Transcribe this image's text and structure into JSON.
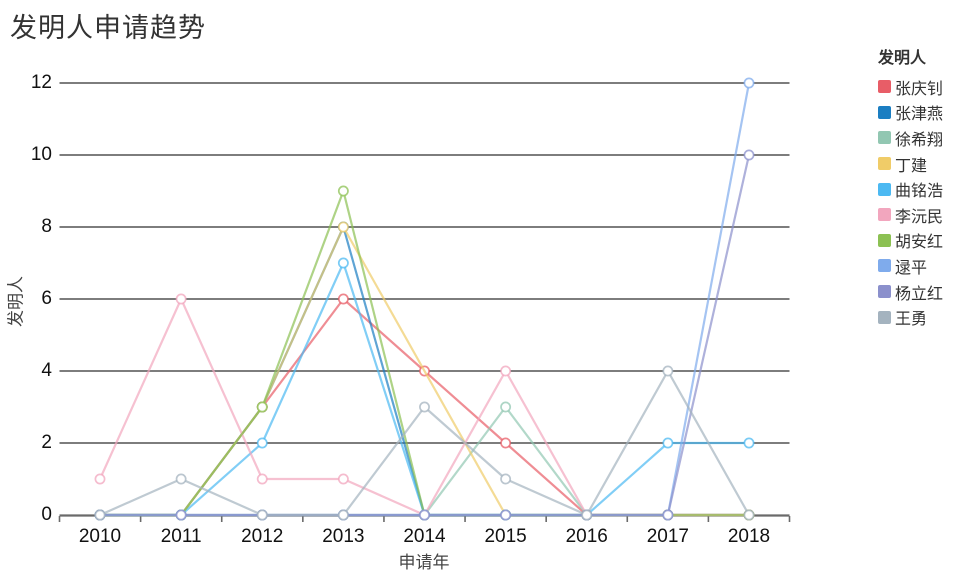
{
  "title": "发明人申请趋势",
  "legend": {
    "title": "发明人"
  },
  "chart_data": {
    "type": "line",
    "title": "发明人申请趋势",
    "xlabel": "申请年",
    "ylabel": "发明人",
    "x": [
      "2010",
      "2011",
      "2012",
      "2013",
      "2014",
      "2015",
      "2016",
      "2017",
      "2018"
    ],
    "yticks": [
      0,
      2,
      4,
      6,
      8,
      10,
      12
    ],
    "ylim": [
      0,
      12
    ],
    "grid": "horizontal-only",
    "legend_position": "right",
    "legend_title": "发明人",
    "marker": "open-circle",
    "series": [
      {
        "name": "张庆钊",
        "color": "#e85d67",
        "values": [
          0,
          0,
          3,
          6,
          4,
          2,
          0,
          0,
          0
        ]
      },
      {
        "name": "张津燕",
        "color": "#1b7ec2",
        "values": [
          0,
          0,
          3,
          8,
          0,
          0,
          0,
          0,
          0
        ]
      },
      {
        "name": "徐希翔",
        "color": "#92c7b2",
        "values": [
          0,
          0,
          0,
          0,
          0,
          3,
          0,
          0,
          0
        ]
      },
      {
        "name": "丁建",
        "color": "#f0cc68",
        "values": [
          0,
          0,
          3,
          8,
          null,
          0,
          0,
          0,
          0
        ]
      },
      {
        "name": "曲铭浩",
        "color": "#4cb9f2",
        "values": [
          0,
          0,
          2,
          7,
          0,
          0,
          0,
          2,
          2
        ]
      },
      {
        "name": "李沅民",
        "color": "#f2a6be",
        "values": [
          1,
          6,
          1,
          1,
          0,
          4,
          0,
          0,
          0
        ]
      },
      {
        "name": "胡安红",
        "color": "#8cc153",
        "values": [
          0,
          0,
          3,
          9,
          0,
          0,
          0,
          0,
          0
        ]
      },
      {
        "name": "逯平",
        "color": "#7fabec",
        "values": [
          0,
          0,
          0,
          0,
          0,
          0,
          0,
          0,
          12
        ]
      },
      {
        "name": "杨立红",
        "color": "#8b90cc",
        "values": [
          0,
          0,
          0,
          0,
          0,
          0,
          0,
          0,
          10
        ]
      },
      {
        "name": "王勇",
        "color": "#a4b3bf",
        "values": [
          0,
          1,
          0,
          0,
          3,
          1,
          0,
          4,
          0
        ]
      }
    ]
  }
}
